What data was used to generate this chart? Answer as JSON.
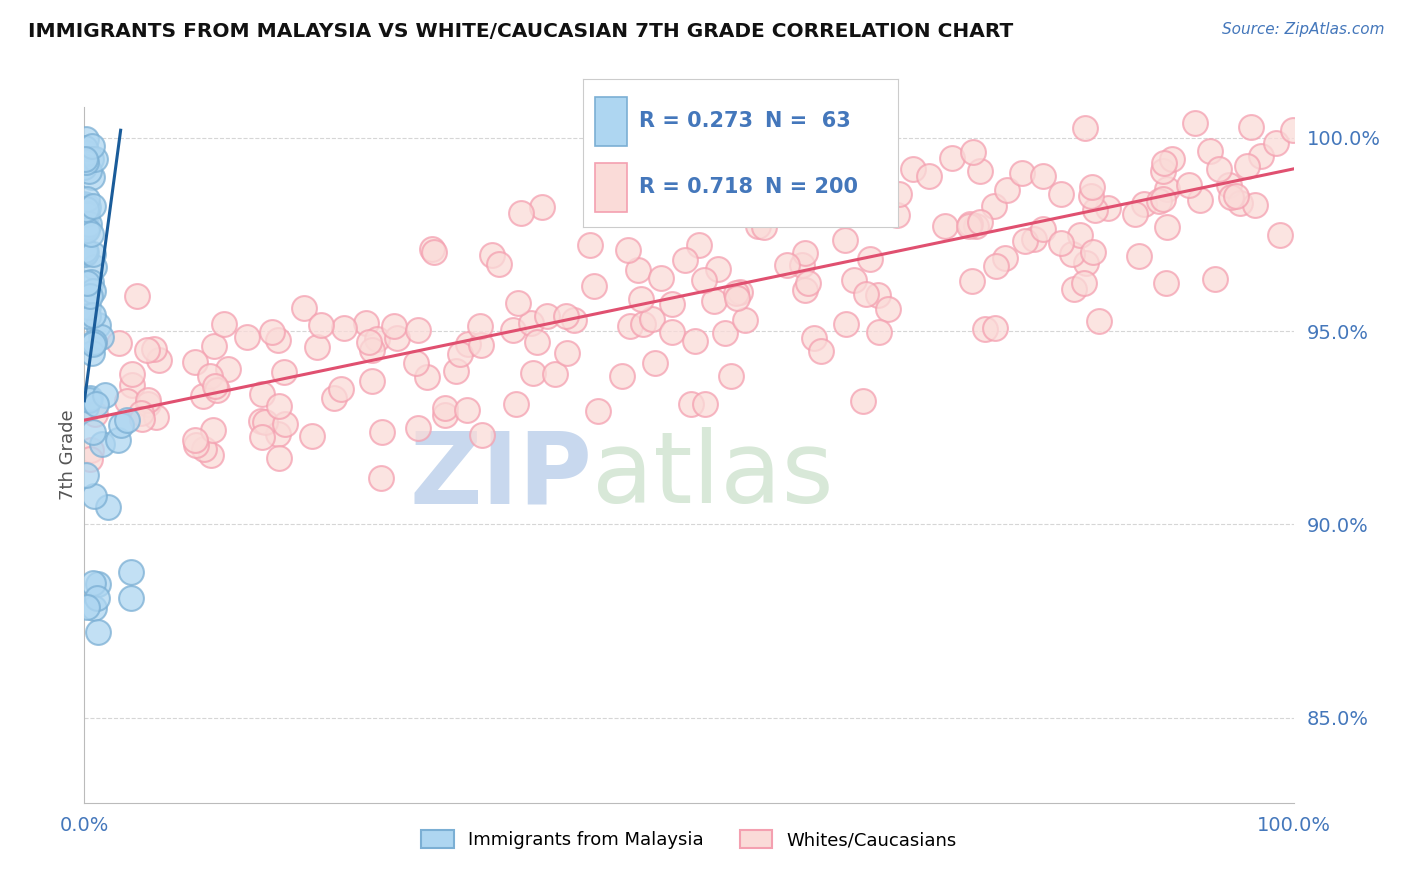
{
  "title": "IMMIGRANTS FROM MALAYSIA VS WHITE/CAUCASIAN 7TH GRADE CORRELATION CHART",
  "source_text": "Source: ZipAtlas.com",
  "ylabel": "7th Grade",
  "x_min": 0.0,
  "x_max": 1.0,
  "y_min": 0.828,
  "y_max": 1.008,
  "y_ticks": [
    0.85,
    0.9,
    0.95,
    1.0
  ],
  "y_tick_labels": [
    "85.0%",
    "90.0%",
    "95.0%",
    "100.0%"
  ],
  "R_blue": 0.273,
  "N_blue": 63,
  "R_pink": 0.718,
  "N_pink": 200,
  "blue_color": "#7BAFD4",
  "pink_color": "#F4A0B0",
  "blue_fill_color": "#AED6F1",
  "pink_fill_color": "#FADBD8",
  "blue_line_color": "#1A5C9A",
  "pink_line_color": "#E05070",
  "axis_color": "#4477BB",
  "watermark_zip": "ZIP",
  "watermark_atlas": "atlas",
  "watermark_color": "#C8D8EE",
  "legend_label_blue": "Immigrants from Malaysia",
  "legend_label_pink": "Whites/Caucasians",
  "background_color": "#FFFFFF",
  "grid_color": "#CCCCCC",
  "blue_trend_x0": 0.0,
  "blue_trend_x1": 0.03,
  "blue_trend_y0": 0.932,
  "blue_trend_y1": 1.002,
  "pink_trend_x0": 0.0,
  "pink_trend_x1": 1.0,
  "pink_trend_y0": 0.927,
  "pink_trend_y1": 0.992
}
